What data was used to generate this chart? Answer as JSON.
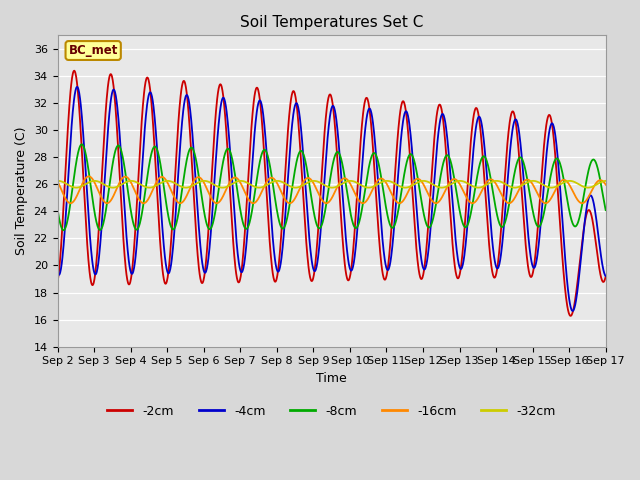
{
  "title": "Soil Temperatures Set C",
  "xlabel": "Time",
  "ylabel": "Soil Temperature (C)",
  "ylim": [
    14,
    37
  ],
  "yticks": [
    14,
    16,
    18,
    20,
    22,
    24,
    26,
    28,
    30,
    32,
    34,
    36
  ],
  "annotation_text": "BC_met",
  "annotation_bg": "#ffff99",
  "annotation_border": "#bb8800",
  "series_colors": {
    "-2cm": "#cc0000",
    "-4cm": "#0000cc",
    "-8cm": "#00aa00",
    "-16cm": "#ff8800",
    "-32cm": "#cccc00"
  },
  "x_labels": [
    "Sep 2",
    "Sep 3",
    "Sep 4",
    "Sep 5",
    "Sep 6",
    "Sep 7",
    "Sep 8",
    "Sep 9",
    "Sep 10",
    "Sep 11",
    "Sep 12",
    "Sep 13",
    "Sep 14",
    "Sep 15",
    "Sep 16",
    "Sep 17"
  ],
  "grid_color": "#ffffff",
  "bg_color": "#e8e8e8",
  "fig_bg": "#d8d8d8"
}
